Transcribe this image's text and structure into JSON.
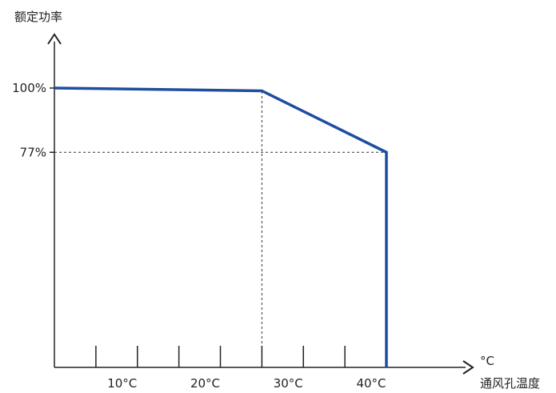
{
  "chart_data": {
    "type": "line",
    "title": "",
    "ylabel": "额定功率",
    "xlabel": "通风孔温度",
    "xunit": "°C",
    "xlim": [
      0,
      40
    ],
    "ylim": [
      0,
      100
    ],
    "x_ticks": [
      5,
      10,
      15,
      20,
      25,
      30,
      35,
      40
    ],
    "x_tick_labels": [
      {
        "x": 10,
        "label": "10°C"
      },
      {
        "x": 20,
        "label": "20°C"
      },
      {
        "x": 30,
        "label": "30°C"
      },
      {
        "x": 40,
        "label": "40°C"
      }
    ],
    "y_tick_labels": [
      {
        "y": 100,
        "label": "100%"
      },
      {
        "y": 77,
        "label": "77%"
      }
    ],
    "series": [
      {
        "x": [
          0,
          25,
          40,
          40
        ],
        "y": [
          100,
          99,
          77,
          0
        ],
        "color": "#1f4e9e"
      }
    ],
    "reference_lines": [
      {
        "orientation": "horizontal",
        "y": 77,
        "x_from": 0,
        "x_to": 40
      },
      {
        "orientation": "vertical",
        "x": 25,
        "y_from": 0,
        "y_to": 99
      }
    ],
    "grid": false,
    "legend": "none"
  }
}
